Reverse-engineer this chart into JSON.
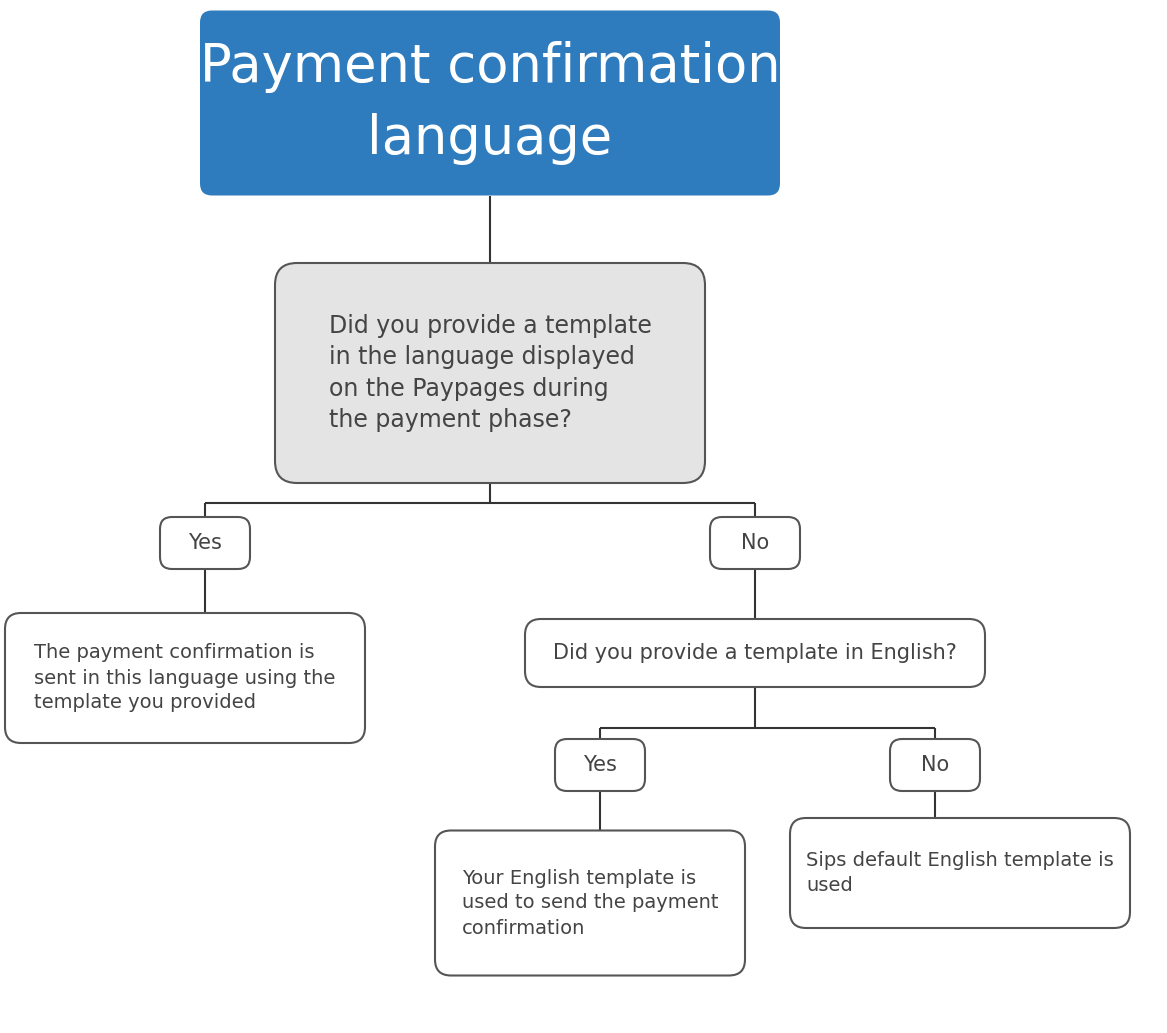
{
  "title": "Payment confirmation\nlanguage",
  "title_bg": "#2e7bbe",
  "title_color": "#ffffff",
  "title_fontsize": 38,
  "node_q1": "Did you provide a template\nin the language displayed\non the Paypages during\nthe payment phase?",
  "node_yes1": "Yes",
  "node_no1": "No",
  "node_leaf1": "The payment confirmation is\nsent in this language using the\ntemplate you provided",
  "node_q2": "Did you provide a template in English?",
  "node_yes2": "Yes",
  "node_no2": "No",
  "node_leaf2": "Your English template is\nused to send the payment\nconfirmation",
  "node_leaf3": "Sips default English template is\nused",
  "box_bg": "#e4e4e4",
  "box_border": "#555555",
  "leaf_bg": "#ffffff",
  "leaf_border": "#555555",
  "decision_bg": "#ffffff",
  "decision_border": "#555555",
  "line_color": "#333333",
  "text_color": "#444444",
  "fontsize_q1": 17,
  "fontsize_q2": 15,
  "fontsize_leaf": 14,
  "fontsize_yn": 15
}
